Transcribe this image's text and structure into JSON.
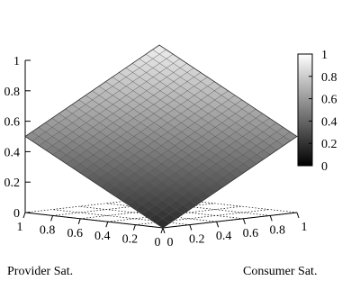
{
  "chart_data": {
    "type": "surface3d",
    "function": "z = (x + y) / 2",
    "xlabel": "Provider Sat.",
    "ylabel": "Consumer Sat.",
    "zlabel": "",
    "x_range": [
      0,
      1
    ],
    "y_range": [
      0,
      1
    ],
    "z_range": [
      0,
      1
    ],
    "x_ticks": [
      "0",
      "0.2",
      "0.4",
      "0.6",
      "0.8",
      "1"
    ],
    "y_ticks": [
      "0",
      "0.2",
      "0.4",
      "0.6",
      "0.8",
      "1"
    ],
    "z_ticks": [
      "0",
      "0.2",
      "0.4",
      "0.6",
      "0.8",
      "1"
    ],
    "colorbar_ticks": [
      "0",
      "0.2",
      "0.4",
      "0.6",
      "0.8",
      "1"
    ],
    "colormap": "grayscale",
    "color_low": "#000000",
    "color_high": "#ffffff",
    "grid_steps": 20,
    "base_grid": true,
    "corner_values": [
      {
        "x": 0,
        "y": 0,
        "z": 0
      },
      {
        "x": 1,
        "y": 0,
        "z": 0.5
      },
      {
        "x": 0,
        "y": 1,
        "z": 0.5
      },
      {
        "x": 1,
        "y": 1,
        "z": 1
      }
    ]
  }
}
